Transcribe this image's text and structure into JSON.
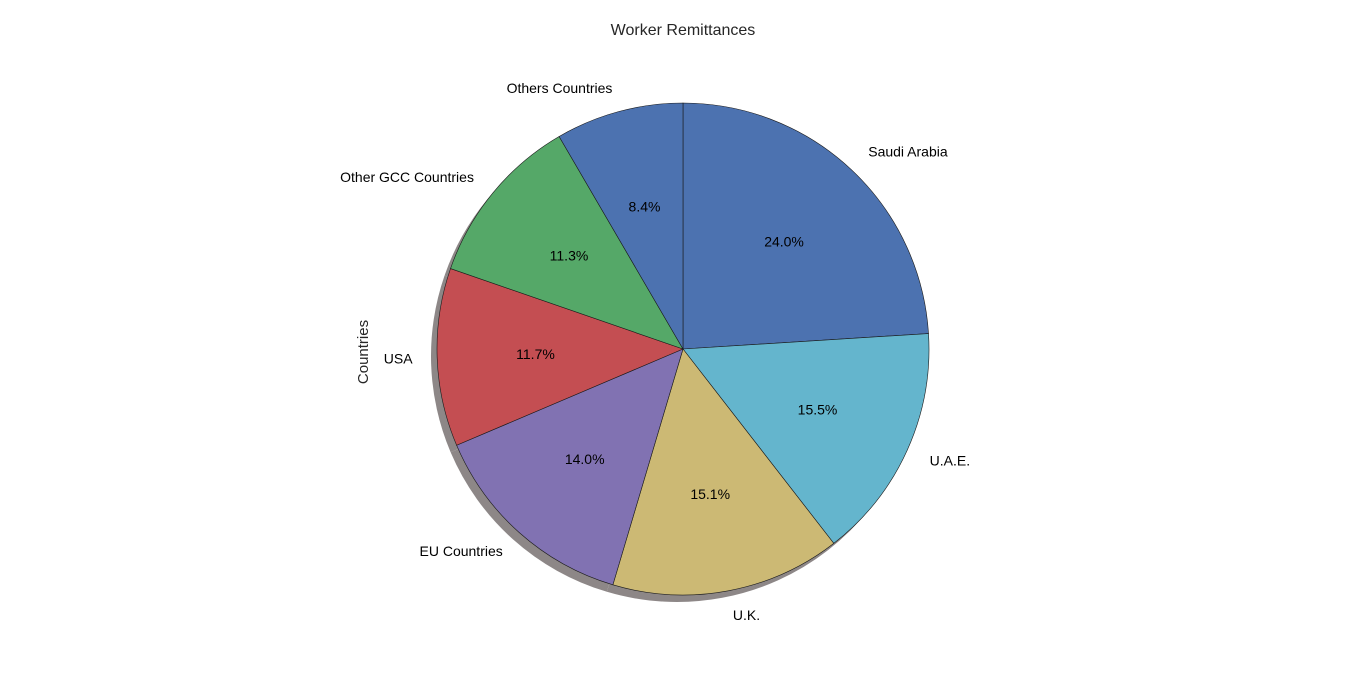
{
  "chart_data": {
    "type": "pie",
    "title": "Worker Remittances",
    "ylabel": "Countries",
    "start_angle_deg": 90,
    "direction": "clockwise",
    "shadow": true,
    "slices": [
      {
        "label": "Saudi Arabia",
        "value": 24.0,
        "pct_label": "24.0%",
        "color": "#4c72b0"
      },
      {
        "label": "U.A.E.",
        "value": 15.5,
        "pct_label": "15.5%",
        "color": "#64b5cd"
      },
      {
        "label": "U.K.",
        "value": 15.1,
        "pct_label": "15.1%",
        "color": "#ccb974"
      },
      {
        "label": "EU Countries",
        "value": 14.0,
        "pct_label": "14.0%",
        "color": "#8172b2"
      },
      {
        "label": "USA",
        "value": 11.7,
        "pct_label": "11.7%",
        "color": "#c44e52"
      },
      {
        "label": "Other GCC Countries",
        "value": 11.3,
        "pct_label": "11.3%",
        "color": "#55a868"
      },
      {
        "label": "Others Countries",
        "value": 8.4,
        "pct_label": "8.4%",
        "color": "#4c72b0"
      }
    ]
  }
}
